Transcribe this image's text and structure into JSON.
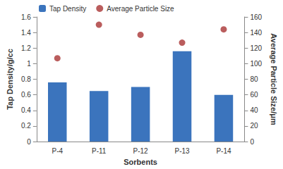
{
  "chart_data": {
    "type": "bar",
    "categories": [
      "P-4",
      "P-11",
      "P-12",
      "P-13",
      "P-14"
    ],
    "x_label": "Sorbents",
    "y_label": "Tap Density/g/cc",
    "y2_label": "Average Particle Size/μm",
    "series": [
      {
        "name": "Tap Density",
        "type": "bar",
        "color": "#3b74bd",
        "values": [
          0.76,
          0.65,
          0.7,
          1.16,
          0.6
        ]
      },
      {
        "name": "Average Particle Size",
        "type": "scatter",
        "axis": "y2",
        "marker": "circle",
        "color": "#a93434",
        "values": [
          107,
          150,
          137,
          127,
          144
        ]
      }
    ],
    "ylim": [
      0,
      1.6
    ],
    "yticks": [
      0,
      0.2,
      0.4,
      0.6,
      0.8,
      1,
      1.2,
      1.4,
      1.6
    ],
    "y2lim": [
      0,
      160
    ],
    "y2ticks": [
      0,
      20,
      40,
      60,
      80,
      100,
      120,
      140,
      160
    ],
    "grid": false,
    "legend": "upper left"
  }
}
